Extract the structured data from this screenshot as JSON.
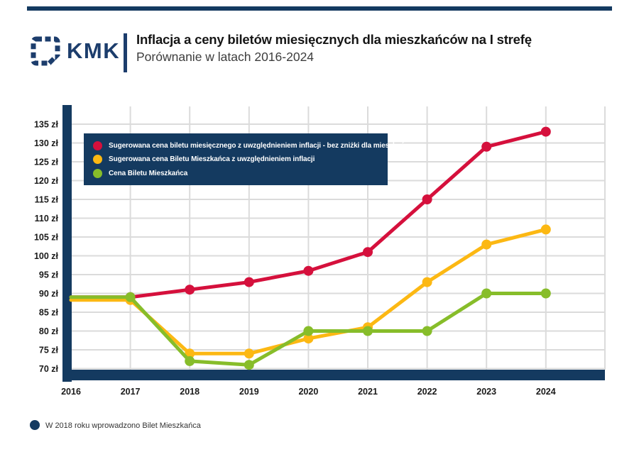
{
  "header": {
    "logo_text": "KMK",
    "title": "Inflacja a ceny biletów miesięcznych dla mieszkańców na I strefę",
    "subtitle": "Porównanie w latach 2016-2024"
  },
  "colors": {
    "navy": "#143A60",
    "logo_navy": "#1C3D6C",
    "red": "#D5103C",
    "yellow": "#FCB813",
    "green": "#87BD2A",
    "grid": "#DBDBDB",
    "white": "#FFFFFF"
  },
  "footnote": "W 2018 roku wprowadzono Bilet Mieszkańca",
  "chart_data": {
    "type": "line",
    "title": "Inflacja a ceny biletów miesięcznych dla mieszkańców na I strefę",
    "subtitle": "Porównanie w latach 2016-2024",
    "categories": [
      "2016",
      "2017",
      "2018",
      "2019",
      "2020",
      "2021",
      "2022",
      "2023",
      "2024"
    ],
    "series": [
      {
        "name": "Sugerowana cena biletu miesięcznego z uwzględnieniem inflacji - bez zniżki dla mieszkańca",
        "color": "#D5103C",
        "values": [
          89,
          89,
          91,
          93,
          96,
          101,
          115,
          129,
          133
        ]
      },
      {
        "name": "Sugerowana cena Biletu Mieszkańca z uwzględnieniem inflacji",
        "color": "#FCB813",
        "values": [
          89,
          89,
          74,
          74,
          78,
          81,
          93,
          103,
          107
        ]
      },
      {
        "name": "Cena Biletu Mieszkańca",
        "color": "#87BD2A",
        "values": [
          89,
          89,
          72,
          71,
          80,
          80,
          80,
          90,
          90
        ]
      }
    ],
    "y_ticks": [
      135,
      130,
      125,
      120,
      115,
      110,
      105,
      100,
      95,
      90,
      85,
      80,
      75,
      70
    ],
    "y_tick_labels": [
      "135 zł",
      "130 zł",
      "125 zł",
      "120 zł",
      "115 zł",
      "110 zł",
      "105 zł",
      "100 zł",
      "95 zł",
      "90 zł",
      "85 zł",
      "80 zł",
      "75 zł",
      "70 zł"
    ],
    "y_unit": "zł",
    "ylim": [
      70,
      135
    ],
    "grid": true,
    "legend_position": "top-left"
  }
}
